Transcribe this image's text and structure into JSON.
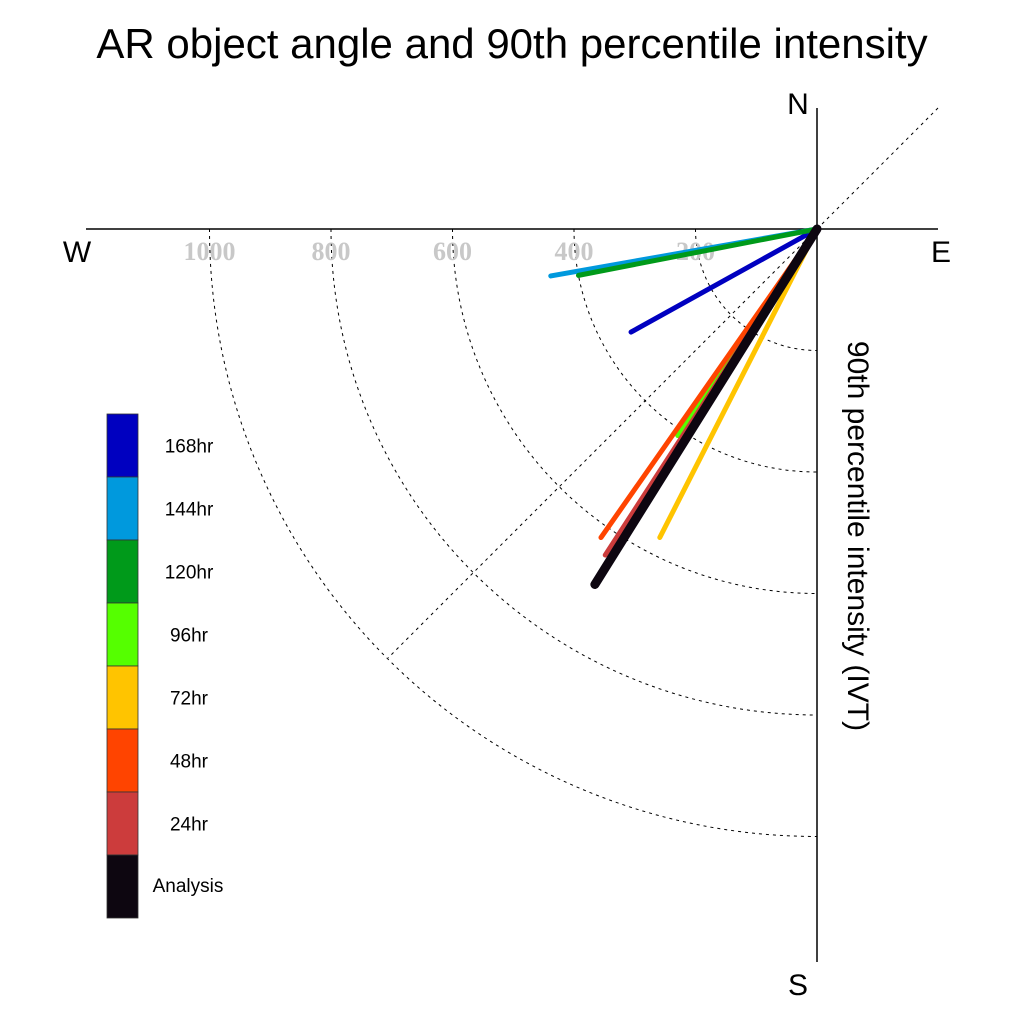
{
  "chart_data": {
    "type": "polar-vector",
    "title": "AR object angle and 90th percentile intensity",
    "ylabel": "90th percentile intensity (IVT)",
    "compass": {
      "north": "N",
      "south": "S",
      "east": "E",
      "west": "W"
    },
    "radial_ticks": [
      200,
      400,
      600,
      800,
      1000
    ],
    "rlim": [
      0,
      1200
    ],
    "grid": "dashed quarter circles",
    "legend_position": "left",
    "series": [
      {
        "name": "Analysis",
        "angle_deg": 212,
        "intensity": 690,
        "color": "#0d0610",
        "width": 9
      },
      {
        "name": "24hr",
        "angle_deg": 213,
        "intensity": 640,
        "color": "#cc3c3c",
        "width": 5
      },
      {
        "name": "48hr",
        "angle_deg": 215,
        "intensity": 620,
        "color": "#ff4400",
        "width": 5
      },
      {
        "name": "72hr",
        "angle_deg": 207,
        "intensity": 570,
        "color": "#ffc400",
        "width": 5
      },
      {
        "name": "96hr",
        "angle_deg": 214,
        "intensity": 410,
        "color": "#55ff00",
        "width": 5
      },
      {
        "name": "120hr",
        "angle_deg": 259,
        "intensity": 400,
        "color": "#009a1a",
        "width": 5
      },
      {
        "name": "144hr",
        "angle_deg": 260,
        "intensity": 445,
        "color": "#0099dd",
        "width": 5
      },
      {
        "name": "168hr",
        "angle_deg": 241,
        "intensity": 350,
        "color": "#0000c0",
        "width": 5
      }
    ],
    "legend": [
      {
        "label": "168hr",
        "color": "#0000c0"
      },
      {
        "label": "144hr",
        "color": "#0099dd"
      },
      {
        "label": "120hr",
        "color": "#009a1a"
      },
      {
        "label": "96hr",
        "color": "#55ff00"
      },
      {
        "label": "72hr",
        "color": "#ffc400"
      },
      {
        "label": "48hr",
        "color": "#ff4400"
      },
      {
        "label": "24hr",
        "color": "#cc3c3c"
      },
      {
        "label": "Analysis",
        "color": "#0d0610"
      }
    ]
  }
}
